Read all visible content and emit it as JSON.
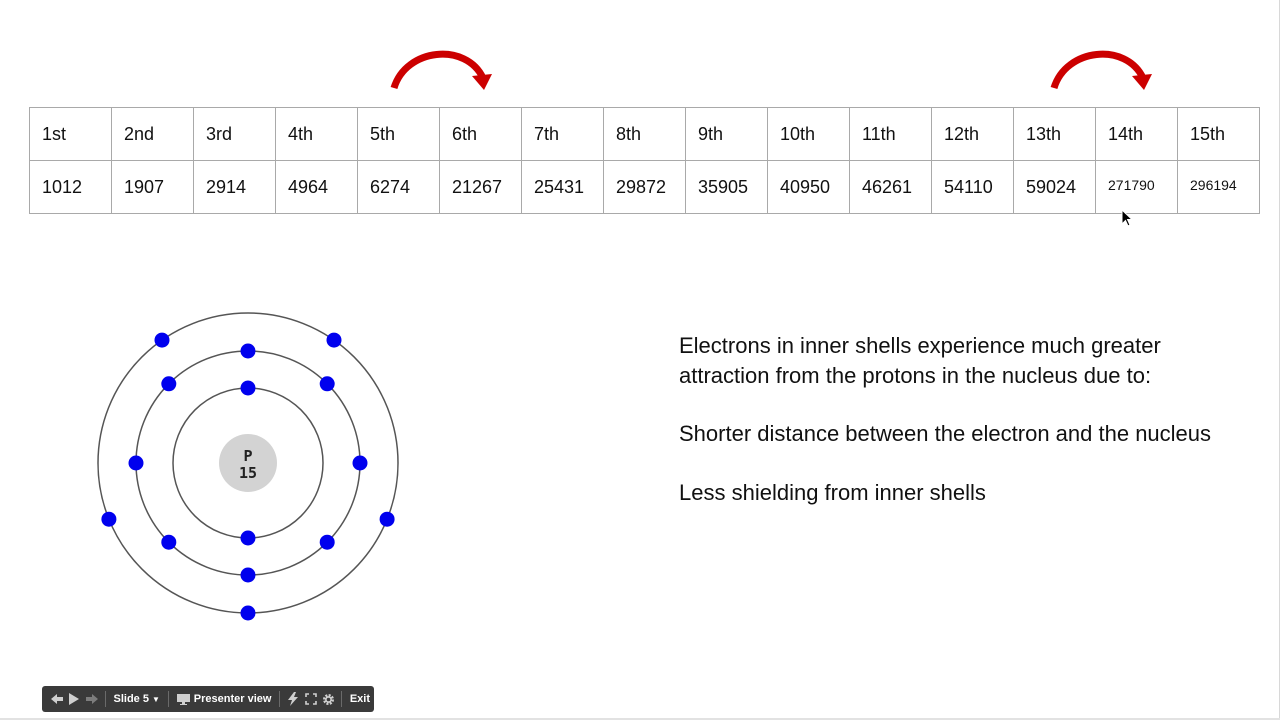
{
  "table": {
    "headers": [
      "1st",
      "2nd",
      "3rd",
      "4th",
      "5th",
      "6th",
      "7th",
      "8th",
      "9th",
      "10th",
      "11th",
      "12th",
      "13th",
      "14th",
      "15th"
    ],
    "values": [
      "1012",
      "1907",
      "2914",
      "4964",
      "6274",
      "21267",
      "25431",
      "29872",
      "35905",
      "40950",
      "46261",
      "54110",
      "59024",
      "271790",
      "296194"
    ]
  },
  "atom": {
    "symbol": "P",
    "protons": "15",
    "shells": [
      2,
      8,
      5
    ],
    "electron_color": "#0000ee",
    "nucleus_color": "#d3d3d3"
  },
  "arrow_color": "#cc0000",
  "explanation": {
    "line1": "Electrons in inner shells experience much greater attraction from the protons in the nucleus due to:",
    "line2": "Shorter distance between the electron and the nucleus",
    "line3": "Less shielding from inner shells"
  },
  "toolbar": {
    "slide_label": "Slide 5",
    "presenter_label": "Presenter view",
    "exit_label": "Exit"
  }
}
